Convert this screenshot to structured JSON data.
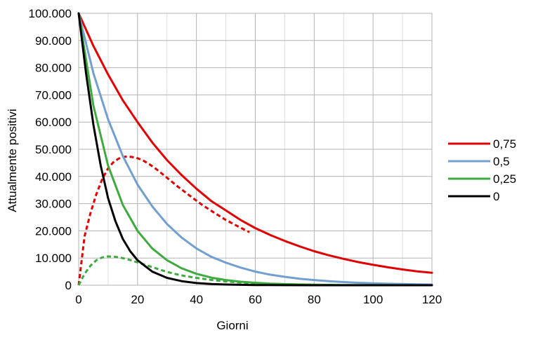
{
  "chart_data": {
    "type": "line",
    "xlabel": "Giorni",
    "ylabel": "Attualmente positivi",
    "xlim": [
      0,
      120
    ],
    "ylim": [
      0,
      100000
    ],
    "x_ticks": [
      "0",
      "20",
      "40",
      "60",
      "80",
      "100",
      "120"
    ],
    "y_ticks": [
      "0",
      "10.000",
      "20.000",
      "30.000",
      "40.000",
      "50.000",
      "60.000",
      "70.000",
      "80.000",
      "90.000",
      "100.000"
    ],
    "grid": true,
    "legend_position": "right",
    "series": [
      {
        "name": "0,75",
        "color": "#e00000",
        "style": "solid",
        "x": [
          0,
          5,
          10,
          15,
          20,
          25,
          30,
          35,
          40,
          45,
          50,
          55,
          60,
          65,
          70,
          75,
          80,
          85,
          90,
          95,
          100,
          105,
          110,
          115,
          120
        ],
        "y": [
          100000,
          88000,
          77500,
          68000,
          60000,
          52500,
          46000,
          40500,
          35500,
          31000,
          27500,
          24000,
          21000,
          18500,
          16300,
          14300,
          12500,
          11000,
          9700,
          8500,
          7500,
          6600,
          5800,
          5100,
          4600
        ]
      },
      {
        "name": "0,5",
        "color": "#729fcf",
        "style": "solid",
        "x": [
          0,
          5,
          10,
          15,
          20,
          25,
          30,
          35,
          40,
          45,
          50,
          55,
          60,
          65,
          70,
          75,
          80,
          85,
          90,
          95,
          100,
          105,
          110,
          115,
          120
        ],
        "y": [
          100000,
          78000,
          61000,
          47500,
          37000,
          29000,
          22500,
          17500,
          13500,
          10500,
          8300,
          6500,
          5000,
          3900,
          3100,
          2400,
          1900,
          1500,
          1150,
          900,
          700,
          550,
          430,
          340,
          260
        ]
      },
      {
        "name": "0,25",
        "color": "#3faa3f",
        "style": "solid",
        "x": [
          0,
          5,
          10,
          15,
          20,
          25,
          30,
          35,
          40,
          45,
          50,
          55,
          60,
          65,
          70,
          75,
          80,
          90,
          100,
          110,
          120
        ],
        "y": [
          100000,
          66000,
          44000,
          29500,
          20000,
          13500,
          9200,
          6200,
          4200,
          2800,
          1900,
          1300,
          900,
          600,
          400,
          280,
          190,
          90,
          40,
          20,
          10
        ]
      },
      {
        "name": "0",
        "color": "#000000",
        "style": "solid",
        "x": [
          0,
          2.5,
          5,
          7.5,
          10,
          12.5,
          15,
          17.5,
          20,
          25,
          30,
          35,
          40,
          45,
          50,
          60,
          70,
          80,
          100,
          120
        ],
        "y": [
          100000,
          78000,
          59000,
          44000,
          32000,
          23500,
          17000,
          12500,
          9200,
          5000,
          2700,
          1500,
          800,
          450,
          250,
          80,
          25,
          8,
          1,
          0
        ]
      },
      {
        "color": "#e00000",
        "style": "dashed",
        "x": [
          0,
          2,
          4,
          6,
          8,
          10,
          12,
          14,
          16,
          18,
          20,
          22,
          24,
          26,
          28,
          30,
          34,
          38,
          42,
          46,
          50,
          54,
          58
        ],
        "y": [
          0,
          18000,
          26500,
          33500,
          39000,
          43000,
          45500,
          46800,
          47300,
          47200,
          46700,
          45800,
          44500,
          43000,
          41300,
          39500,
          36000,
          32700,
          29500,
          26700,
          24000,
          21700,
          19500
        ]
      },
      {
        "color": "#3faa3f",
        "style": "dashed",
        "x": [
          0,
          2,
          4,
          6,
          8,
          10,
          12,
          14,
          16,
          18,
          20,
          22,
          24,
          26,
          28,
          30,
          33,
          36,
          40,
          44,
          48,
          52,
          56,
          60,
          70,
          80
        ],
        "y": [
          0,
          4200,
          7200,
          9200,
          10200,
          10600,
          10500,
          10200,
          9700,
          9100,
          8400,
          7700,
          7000,
          6300,
          5600,
          4900,
          4100,
          3400,
          2700,
          2100,
          1600,
          1200,
          900,
          700,
          350,
          150
        ]
      }
    ]
  }
}
